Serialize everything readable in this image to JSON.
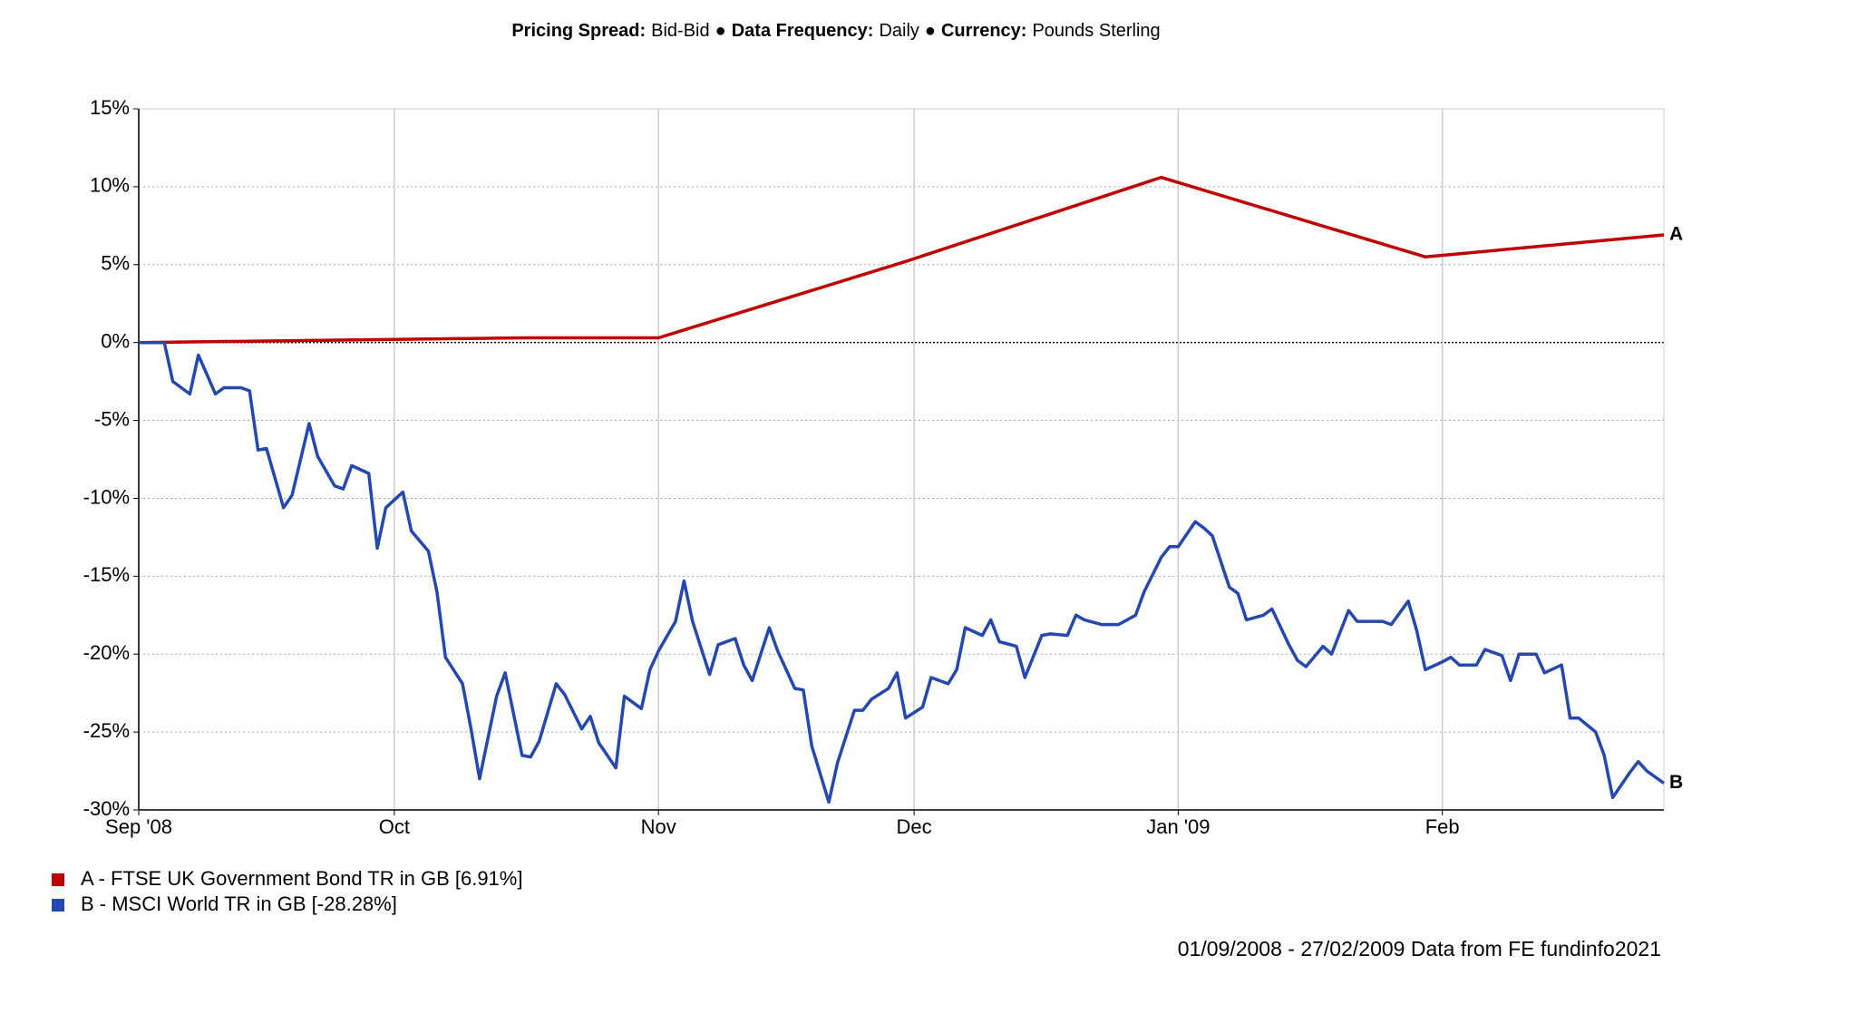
{
  "chart_data": {
    "type": "line",
    "header": [
      {
        "label": "Pricing Spread:",
        "value": "Bid-Bid"
      },
      {
        "label": "Data Frequency:",
        "value": "Daily"
      },
      {
        "label": "Currency:",
        "value": "Pounds Sterling"
      }
    ],
    "separator": "●",
    "footer": "01/09/2008 - 27/02/2009 Data from FE fundinfo2021",
    "xlim": [
      0,
      179
    ],
    "xticks": [
      {
        "value": 0,
        "label": "Sep '08"
      },
      {
        "value": 30,
        "label": "Oct"
      },
      {
        "value": 61,
        "label": "Nov"
      },
      {
        "value": 91,
        "label": "Dec"
      },
      {
        "value": 122,
        "label": "Jan '09"
      },
      {
        "value": 153,
        "label": "Feb"
      }
    ],
    "ylim": [
      -30,
      15
    ],
    "yticks": [
      {
        "value": -30,
        "label": "-30%"
      },
      {
        "value": -25,
        "label": "-25%"
      },
      {
        "value": -20,
        "label": "-20%"
      },
      {
        "value": -15,
        "label": "-15%"
      },
      {
        "value": -10,
        "label": "-10%"
      },
      {
        "value": -5,
        "label": "-5%"
      },
      {
        "value": 0,
        "label": "0%"
      },
      {
        "value": 5,
        "label": "5%"
      },
      {
        "value": 10,
        "label": "10%"
      },
      {
        "value": 15,
        "label": "15%"
      }
    ],
    "grid": true,
    "series": [
      {
        "name": "A - FTSE UK Government Bond TR in GB [6.91%]",
        "end_label": "A",
        "color": "#c00000",
        "x": [
          0,
          30,
          45,
          61,
          90,
          120,
          151,
          179
        ],
        "values": [
          0,
          0.2,
          0.3,
          0.3,
          5.2,
          10.6,
          5.5,
          6.91
        ]
      },
      {
        "name": "B - MSCI World TR in GB [-28.28%]",
        "end_label": "B",
        "color": "#2448b0",
        "x": [
          0,
          3,
          4,
          6,
          7,
          9,
          10,
          12,
          13,
          14,
          15,
          17,
          18,
          20,
          21,
          23,
          24,
          25,
          27,
          28,
          29,
          31,
          32,
          34,
          35,
          36,
          38,
          39,
          40,
          42,
          43,
          45,
          46,
          47,
          49,
          50,
          52,
          53,
          54,
          56,
          57,
          59,
          60,
          61,
          63,
          64,
          65,
          67,
          68,
          70,
          71,
          72,
          74,
          75,
          77,
          78,
          79,
          81,
          82,
          84,
          85,
          86,
          88,
          89,
          90,
          92,
          93,
          95,
          96,
          97,
          99,
          100,
          101,
          103,
          104,
          106,
          107,
          109,
          110,
          111,
          113,
          114,
          115,
          117,
          118,
          120,
          121,
          122,
          124,
          125,
          126,
          128,
          129,
          130,
          132,
          133,
          135,
          136,
          137,
          139,
          140,
          142,
          143,
          144,
          146,
          147,
          149,
          150,
          151,
          153,
          154,
          155,
          157,
          158,
          160,
          161,
          162,
          164,
          165,
          167,
          168,
          169,
          171,
          172,
          173,
          175,
          176,
          177,
          179
        ],
        "values": [
          0,
          0,
          -2.5,
          -3.3,
          -0.8,
          -3.3,
          -2.9,
          -2.9,
          -3.1,
          -6.9,
          -6.8,
          -10.6,
          -9.8,
          -5.2,
          -7.3,
          -9.2,
          -9.4,
          -7.9,
          -8.4,
          -13.2,
          -10.6,
          -9.6,
          -12.1,
          -13.4,
          -16,
          -20.2,
          -21.9,
          -24.8,
          -28,
          -22.7,
          -21.2,
          -26.5,
          -26.6,
          -25.6,
          -21.9,
          -22.6,
          -24.8,
          -24,
          -25.7,
          -27.3,
          -22.7,
          -23.5,
          -21,
          -19.8,
          -17.9,
          -15.3,
          -17.9,
          -21.3,
          -19.4,
          -19,
          -20.7,
          -21.7,
          -18.3,
          -19.8,
          -22.2,
          -22.3,
          -25.9,
          -29.5,
          -27,
          -23.6,
          -23.6,
          -22.9,
          -22.2,
          -21.2,
          -24.1,
          -23.4,
          -21.5,
          -21.9,
          -21,
          -18.3,
          -18.8,
          -17.8,
          -19.2,
          -19.5,
          -21.5,
          -18.8,
          -18.7,
          -18.8,
          -17.5,
          -17.8,
          -18.1,
          -18.1,
          -18.1,
          -17.5,
          -16,
          -13.8,
          -13.1,
          -13.1,
          -11.5,
          -11.9,
          -12.4,
          -15.7,
          -16.1,
          -17.8,
          -17.5,
          -17.1,
          -19.4,
          -20.4,
          -20.8,
          -19.5,
          -20,
          -17.2,
          -17.9,
          -17.9,
          -17.9,
          -18.1,
          -16.6,
          -18.5,
          -21,
          -20.5,
          -20.2,
          -20.7,
          -20.7,
          -19.7,
          -20.1,
          -21.7,
          -20,
          -20,
          -21.2,
          -20.7,
          -24.1,
          -24.1,
          -25,
          -26.5,
          -29.2,
          -27.6,
          -26.9,
          -27.5,
          -28.28
        ]
      }
    ]
  }
}
